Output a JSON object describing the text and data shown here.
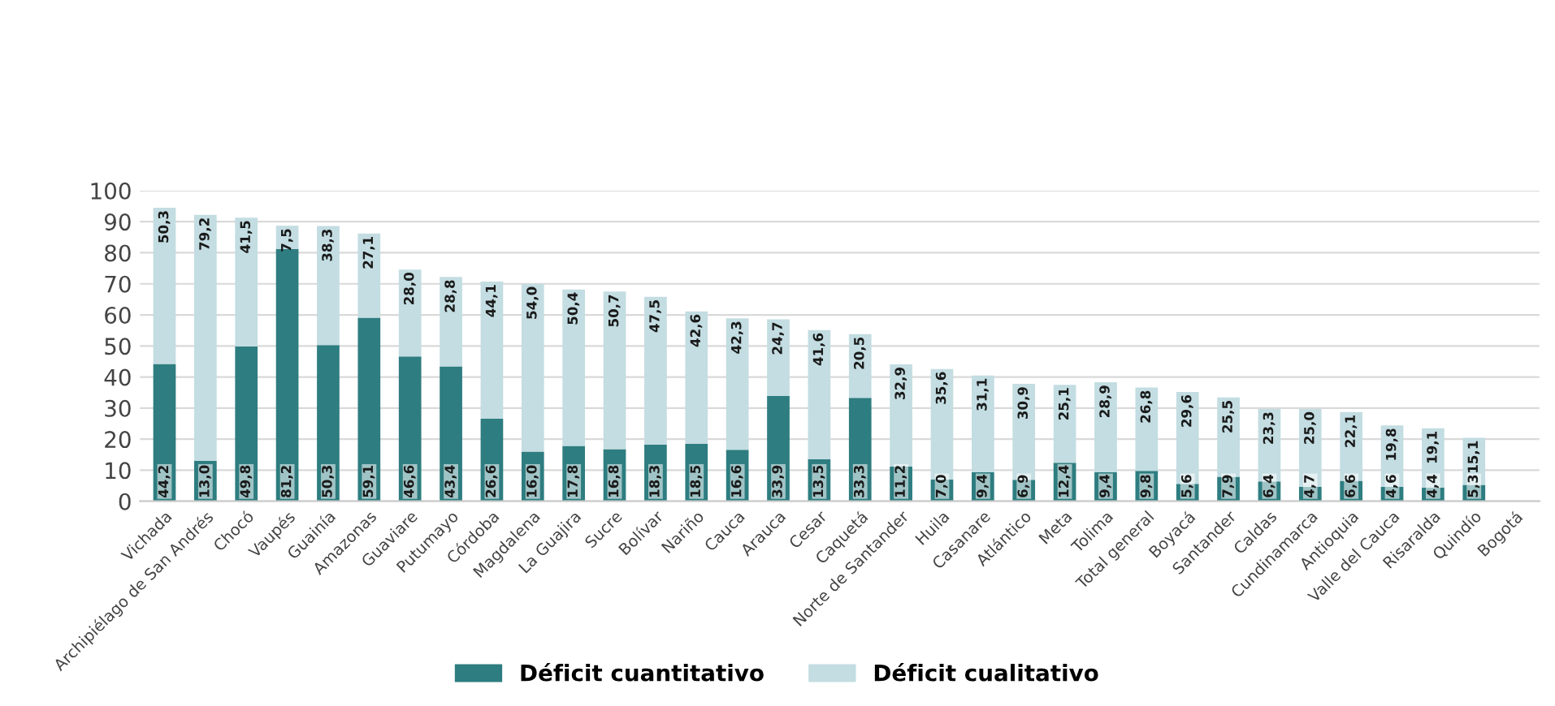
{
  "chart_data": {
    "type": "bar",
    "stacked": true,
    "categories": [
      "Vichada",
      "Archipiélago de San Andrés",
      "Chocó",
      "Vaupés",
      "Guainía",
      "Amazonas",
      "Guaviare",
      "Putumayo",
      "Córdoba",
      "Magdalena",
      "La Guajira",
      "Sucre",
      "Bolívar",
      "Nariño",
      "Cauca",
      "Arauca",
      "Cesar",
      "Caquetá",
      "Norte de Santander",
      "Huila",
      "Casanare",
      "Atlántico",
      "Meta",
      "Tolima",
      "Total general",
      "Boyacá",
      "Santander",
      "Caldas",
      "Cundinamarca",
      "Antioquia",
      "Valle del Cauca",
      "Risaralda",
      "Quindío",
      "Bogotá"
    ],
    "series": [
      {
        "name": "Déficit cuantitativo",
        "color": "#2e7d80",
        "values": [
          44.2,
          13.0,
          49.8,
          81.2,
          50.3,
          59.1,
          46.6,
          43.4,
          26.6,
          16.0,
          17.8,
          16.8,
          18.3,
          18.5,
          16.6,
          33.9,
          13.5,
          33.3,
          11.2,
          7.0,
          9.4,
          6.9,
          12.4,
          9.4,
          9.8,
          5.6,
          7.9,
          6.4,
          4.7,
          6.6,
          4.6,
          4.4,
          5.3,
          null
        ],
        "value_labels": [
          "44,2",
          "13,0",
          "49,8",
          "81,2",
          "50,3",
          "59,1",
          "46,6",
          "43,4",
          "26,6",
          "16,0",
          "17,8",
          "16,8",
          "18,3",
          "18,5",
          "16,6",
          "33,9",
          "13,5",
          "33,3",
          "11,2",
          "7,0",
          "9,4",
          "6,9",
          "12,4",
          "9,4",
          "9,8",
          "5,6",
          "7,9",
          "6,4",
          "4,7",
          "6,6",
          "4,6",
          "4,4",
          "5,3",
          null
        ]
      },
      {
        "name": "Déficit cualitativo",
        "color": "#c3dde2",
        "values": [
          50.3,
          79.2,
          41.5,
          7.5,
          38.3,
          27.1,
          28.0,
          28.8,
          44.1,
          54.0,
          50.4,
          50.7,
          47.5,
          42.6,
          42.3,
          24.7,
          41.6,
          20.5,
          32.9,
          35.6,
          31.1,
          30.9,
          25.1,
          28.9,
          26.8,
          29.6,
          25.5,
          23.3,
          25.0,
          22.1,
          19.8,
          19.1,
          15.1,
          null
        ],
        "value_labels": [
          "50,3",
          "79,2",
          "41,5",
          "7,5",
          "38,3",
          "27,1",
          "28,0",
          "28,8",
          "44,1",
          "54,0",
          "50,4",
          "50,7",
          "47,5",
          "42,6",
          "42,3",
          "24,7",
          "41,6",
          "20,5",
          "32,9",
          "35,6",
          "31,1",
          "30,9",
          "25,1",
          "28,9",
          "26,8",
          "29,6",
          "25,5",
          "23,3",
          "25,0",
          "22,1",
          "19,8",
          "19,1",
          "15,1",
          null
        ]
      }
    ],
    "ylim": [
      0,
      100
    ],
    "yticks": [
      0,
      10,
      20,
      30,
      40,
      50,
      60,
      70,
      80,
      90,
      100
    ],
    "grid": "y",
    "legend": "bottom"
  }
}
